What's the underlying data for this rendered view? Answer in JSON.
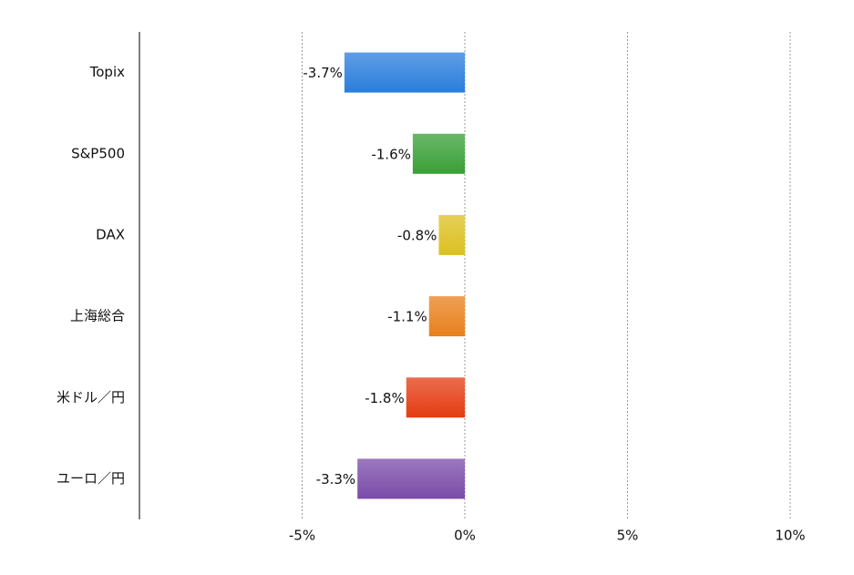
{
  "chart_data": {
    "type": "barh",
    "categories": [
      "Topix",
      "S&P500",
      "DAX",
      "上海総合",
      "米ドル／円",
      "ユーロ／円"
    ],
    "values": [
      -3.7,
      -1.6,
      -0.8,
      -1.1,
      -1.8,
      -3.3
    ],
    "value_labels": [
      "-3.7%",
      "-1.6%",
      "-0.8%",
      "-1.1%",
      "-1.8%",
      "-3.3%"
    ],
    "colors": [
      "#2a7ddc",
      "#38a035",
      "#dcc020",
      "#e8801c",
      "#e43c12",
      "#7a4ba8"
    ],
    "xlim": [
      -10,
      10
    ],
    "xticks": [
      {
        "value": -5,
        "label": "-5%"
      },
      {
        "value": 0,
        "label": "0%"
      },
      {
        "value": 5,
        "label": "5%"
      },
      {
        "value": 10,
        "label": "10%"
      }
    ],
    "grid": true
  }
}
